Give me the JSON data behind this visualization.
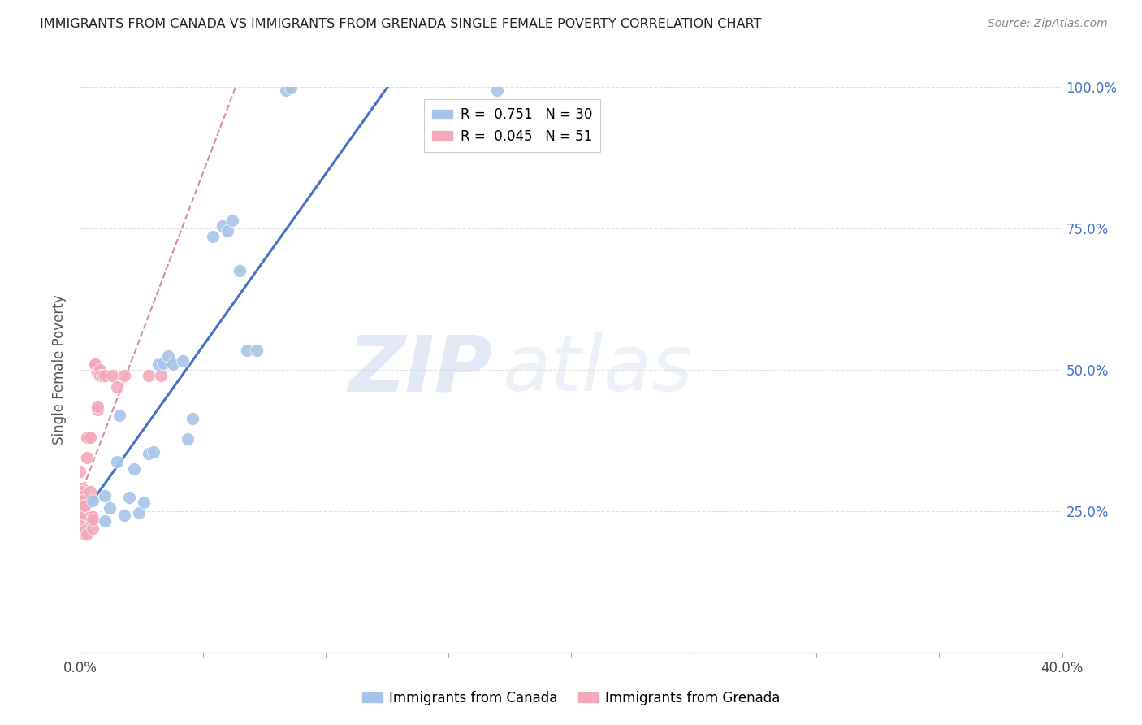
{
  "title": "IMMIGRANTS FROM CANADA VS IMMIGRANTS FROM GRENADA SINGLE FEMALE POVERTY CORRELATION CHART",
  "source": "Source: ZipAtlas.com",
  "ylabel": "Single Female Poverty",
  "xlim": [
    0.0,
    0.4
  ],
  "ylim": [
    0.0,
    1.0
  ],
  "canada_R": 0.751,
  "canada_N": 30,
  "grenada_R": 0.045,
  "grenada_N": 51,
  "canada_color": "#a8c4e8",
  "grenada_color": "#f4a8bc",
  "canada_line_color": "#4472c4",
  "grenada_line_color": "#d46080",
  "watermark_zip": "ZIP",
  "watermark_atlas": "atlas",
  "canada_x": [
    0.005,
    0.01,
    0.01,
    0.012,
    0.015,
    0.016,
    0.018,
    0.02,
    0.022,
    0.024,
    0.026,
    0.028,
    0.03,
    0.032,
    0.034,
    0.036,
    0.038,
    0.042,
    0.044,
    0.046,
    0.054,
    0.058,
    0.06,
    0.062,
    0.065,
    0.068,
    0.072,
    0.084,
    0.086,
    0.17
  ],
  "canada_y": [
    0.268,
    0.277,
    0.232,
    0.256,
    0.337,
    0.419,
    0.242,
    0.274,
    0.325,
    0.247,
    0.265,
    0.352,
    0.355,
    0.51,
    0.512,
    0.525,
    0.51,
    0.515,
    0.377,
    0.413,
    0.735,
    0.755,
    0.745,
    0.765,
    0.675,
    0.535,
    0.535,
    0.995,
    0.998,
    0.995
  ],
  "grenada_x": [
    0.0,
    0.0,
    0.0,
    0.0,
    0.001,
    0.001,
    0.001,
    0.001,
    0.001,
    0.001,
    0.001,
    0.001,
    0.001,
    0.001,
    0.001,
    0.001,
    0.001,
    0.001,
    0.002,
    0.002,
    0.002,
    0.002,
    0.002,
    0.002,
    0.002,
    0.002,
    0.003,
    0.003,
    0.003,
    0.004,
    0.004,
    0.004,
    0.005,
    0.005,
    0.005,
    0.006,
    0.006,
    0.007,
    0.007,
    0.007,
    0.007,
    0.008,
    0.008,
    0.009,
    0.009,
    0.01,
    0.013,
    0.015,
    0.018,
    0.028,
    0.033
  ],
  "grenada_y": [
    0.32,
    0.285,
    0.265,
    0.255,
    0.29,
    0.27,
    0.265,
    0.26,
    0.27,
    0.265,
    0.26,
    0.285,
    0.275,
    0.26,
    0.245,
    0.235,
    0.26,
    0.225,
    0.27,
    0.245,
    0.21,
    0.26,
    0.245,
    0.22,
    0.26,
    0.215,
    0.21,
    0.345,
    0.38,
    0.38,
    0.285,
    0.24,
    0.22,
    0.24,
    0.235,
    0.51,
    0.51,
    0.495,
    0.43,
    0.435,
    0.495,
    0.5,
    0.49,
    0.49,
    0.49,
    0.49,
    0.49,
    0.47,
    0.49,
    0.49,
    0.49
  ]
}
